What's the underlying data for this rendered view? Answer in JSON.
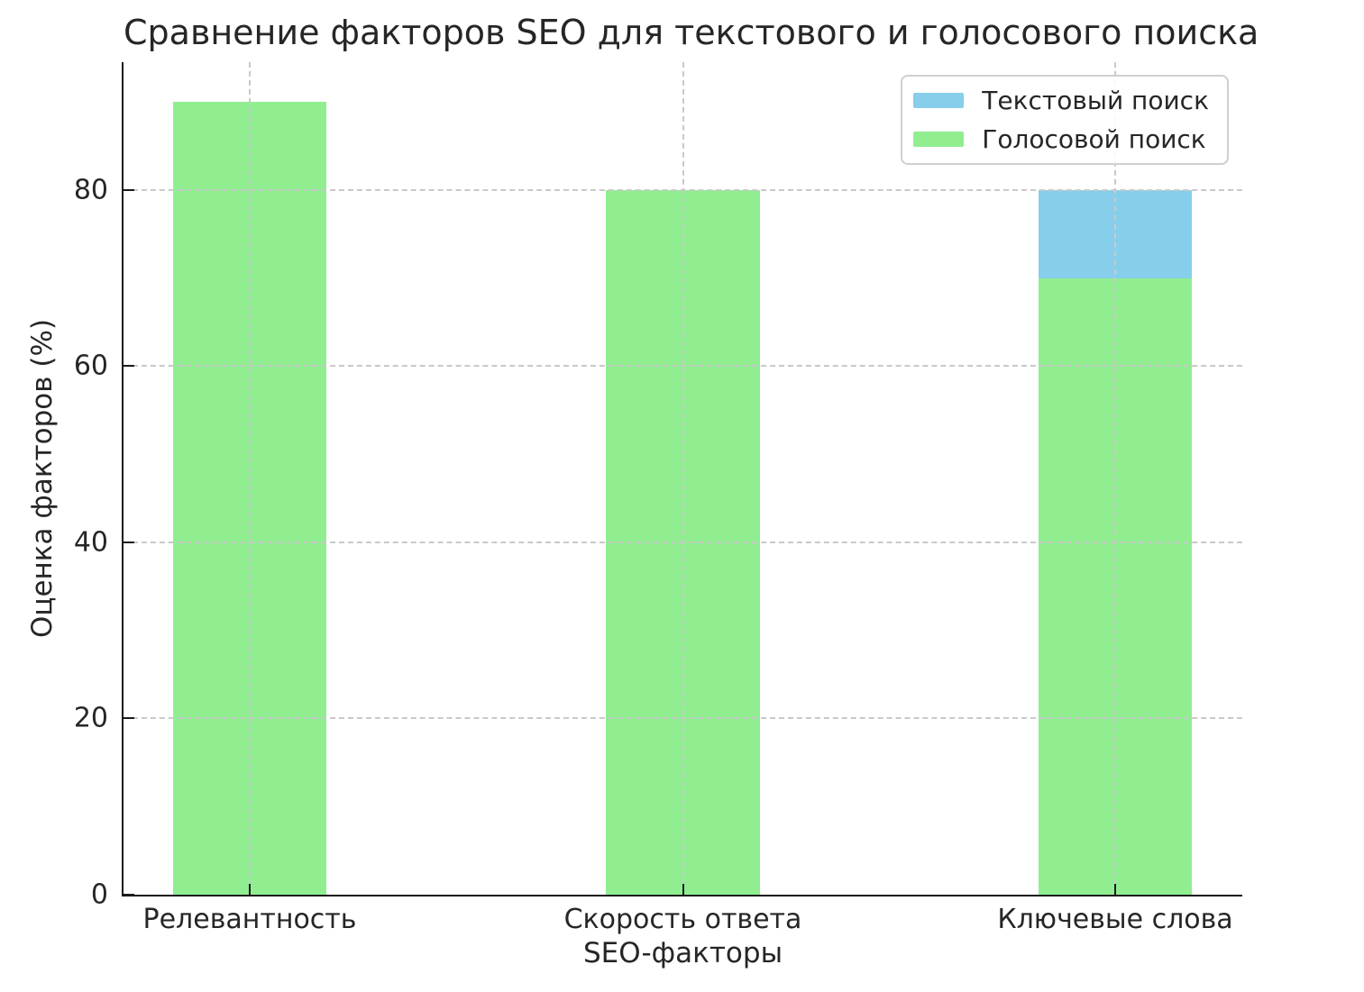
{
  "chart_data": {
    "type": "bar",
    "title": "Сравнение факторов SEO для текстового и голосового поиска",
    "xlabel": "SEO-факторы",
    "ylabel": "Оценка факторов (%)",
    "categories": [
      "Релевантность",
      "Скорость ответа",
      "Ключевые слова"
    ],
    "series": [
      {
        "name": "Текстовый поиск",
        "color": "#87CEEB",
        "values": [
          null,
          null,
          80
        ],
        "note": "drawn behind voice-search bars; hidden except where taller (Ключевые слова = 80)"
      },
      {
        "name": "Голосовой поиск",
        "color": "#90EE90",
        "values": [
          90,
          80,
          70
        ]
      }
    ],
    "bar_mode": "overlay",
    "yticks": [
      0,
      20,
      40,
      60,
      80
    ],
    "ylim": [
      0,
      94.5
    ],
    "grid": {
      "on": true,
      "style": "dashed",
      "color": "#c9c9c9",
      "axis": "both",
      "above_bars": true
    },
    "legend": {
      "position": "upper right",
      "entries": [
        "Текстовый поиск",
        "Голосовой поиск"
      ]
    },
    "layout": {
      "bar_centers_pct": [
        11.28,
        50.0,
        88.64
      ],
      "bar_width_pct": 13.7
    }
  }
}
